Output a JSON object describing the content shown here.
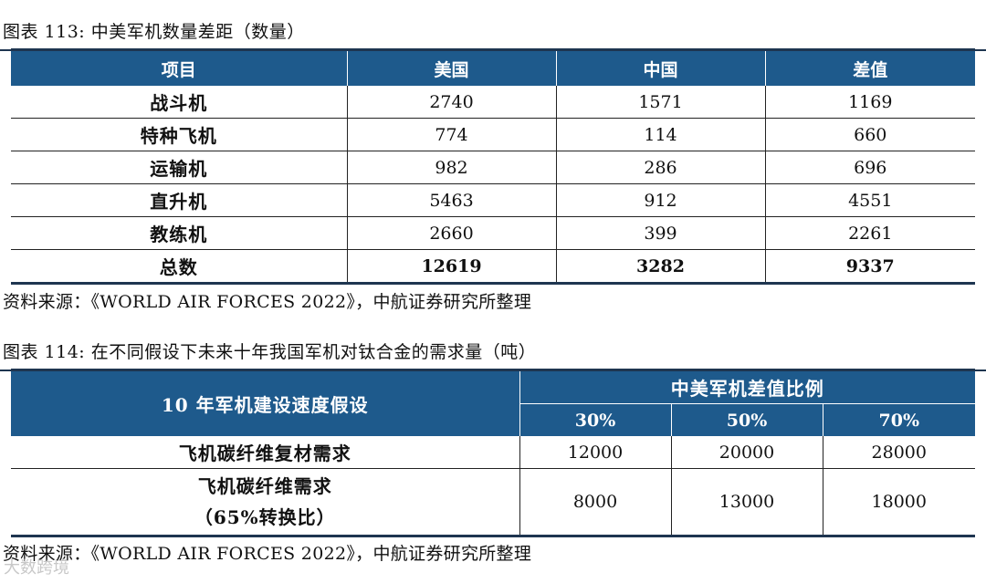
{
  "table1": {
    "caption": "图表 113: 中美军机数量差距（数量）",
    "headers": [
      "项目",
      "美国",
      "中国",
      "差值"
    ],
    "rows": [
      {
        "label": "战斗机",
        "us": "2740",
        "cn": "1571",
        "diff": "1169"
      },
      {
        "label": "特种飞机",
        "us": "774",
        "cn": "114",
        "diff": "660"
      },
      {
        "label": "运输机",
        "us": "982",
        "cn": "286",
        "diff": "696"
      },
      {
        "label": "直升机",
        "us": "5463",
        "cn": "912",
        "diff": "4551"
      },
      {
        "label": "教练机",
        "us": "2660",
        "cn": "399",
        "diff": "2261"
      },
      {
        "label": "总数",
        "us": "12619",
        "cn": "3282",
        "diff": "9337"
      }
    ],
    "source": "资料来源：《WORLD AIR FORCES 2022》，中航证券研究所整理"
  },
  "table2": {
    "caption": "图表 114: 在不同假设下未来十年我国军机对钛合金的需求量（吨）",
    "header_left": "10 年军机建设速度假设",
    "header_group": "中美军机差值比例",
    "percents": [
      "30%",
      "50%",
      "70%"
    ],
    "rows": [
      {
        "label": "飞机碳纤维复材需求",
        "label2": "",
        "v1": "12000",
        "v2": "20000",
        "v3": "28000"
      },
      {
        "label": "飞机碳纤维需求",
        "label2": "（65%转换比）",
        "v1": "8000",
        "v2": "13000",
        "v3": "18000"
      }
    ],
    "source": "资料来源：《WORLD AIR FORCES 2022》，中航证券研究所整理"
  },
  "watermark": "大数跨境"
}
